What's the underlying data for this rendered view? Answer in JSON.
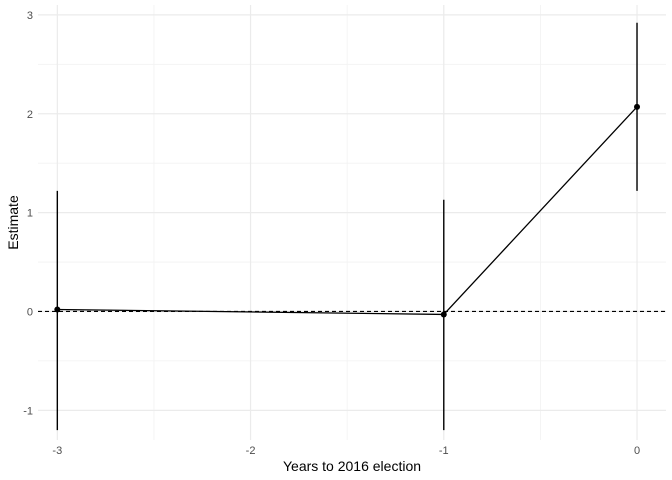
{
  "chart_data": {
    "type": "line",
    "title": "",
    "xlabel": "Years to 2016 election",
    "ylabel": "Estimate",
    "xlim": [
      -3.1,
      0.15
    ],
    "ylim": [
      -1.3,
      3.1
    ],
    "x_ticks": [
      -3,
      -2,
      -1,
      0
    ],
    "x_tick_labels": [
      "-3",
      "-2",
      "-1",
      "0"
    ],
    "y_ticks": [
      -1,
      0,
      1,
      2,
      3
    ],
    "y_tick_labels": [
      "-1",
      "0",
      "1",
      "2",
      "3"
    ],
    "grid": true,
    "reference_line": {
      "y": 0,
      "style": "dashed"
    },
    "series": [
      {
        "x": [
          -3,
          -1,
          0
        ],
        "y": [
          0.02,
          -0.03,
          2.07
        ],
        "ci_low": [
          -1.2,
          -1.2,
          1.22
        ],
        "ci_high": [
          1.22,
          1.13,
          2.92
        ]
      }
    ]
  }
}
